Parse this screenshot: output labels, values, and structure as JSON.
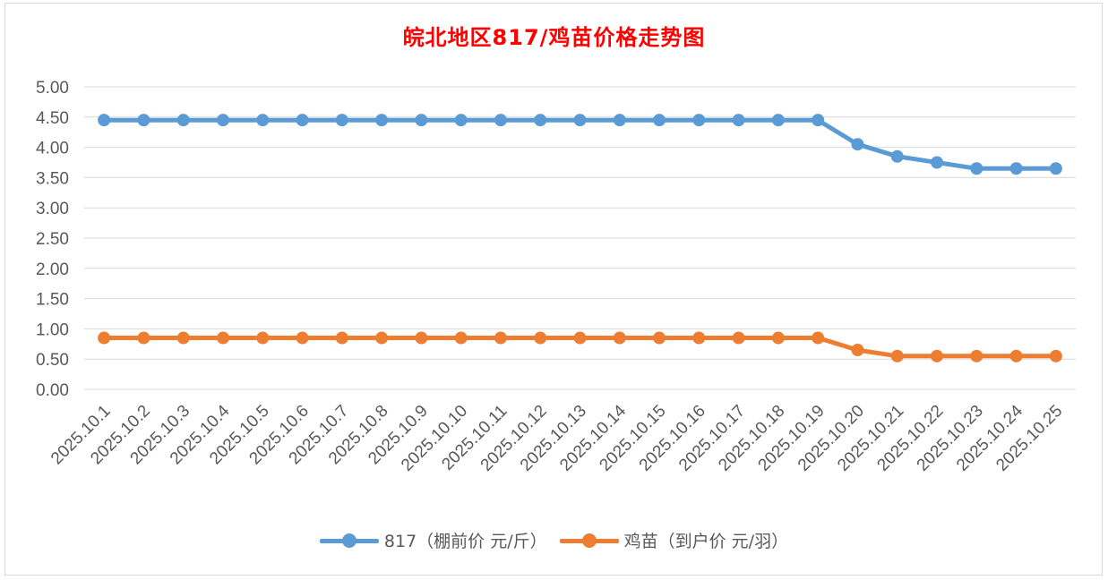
{
  "chart_data": {
    "type": "line",
    "title": "皖北地区817/鸡苗价格走势图",
    "xlabel": "",
    "ylabel": "",
    "ylim": [
      0,
      5
    ],
    "y_ticks": [
      "0.00",
      "0.50",
      "1.00",
      "1.50",
      "2.00",
      "2.50",
      "3.00",
      "3.50",
      "4.00",
      "4.50",
      "5.00"
    ],
    "grid": true,
    "legend_position": "bottom",
    "categories": [
      "2025.10.1",
      "2025.10.2",
      "2025.10.3",
      "2025.10.4",
      "2025.10.5",
      "2025.10.6",
      "2025.10.7",
      "2025.10.8",
      "2025.10.9",
      "2025.10.10",
      "2025.10.11",
      "2025.10.12",
      "2025.10.13",
      "2025.10.14",
      "2025.10.15",
      "2025.10.16",
      "2025.10.17",
      "2025.10.18",
      "2025.10.19",
      "2025.10.20",
      "2025.10.21",
      "2025.10.22",
      "2025.10.23",
      "2025.10.24",
      "2025.10.25"
    ],
    "series": [
      {
        "name": "817（棚前价 元/斤）",
        "color": "#5b9bd5",
        "values": [
          4.45,
          4.45,
          4.45,
          4.45,
          4.45,
          4.45,
          4.45,
          4.45,
          4.45,
          4.45,
          4.45,
          4.45,
          4.45,
          4.45,
          4.45,
          4.45,
          4.45,
          4.45,
          4.45,
          4.05,
          3.85,
          3.75,
          3.65,
          3.65,
          3.65
        ]
      },
      {
        "name": "鸡苗（到户价 元/羽）",
        "color": "#ed7d31",
        "values": [
          0.85,
          0.85,
          0.85,
          0.85,
          0.85,
          0.85,
          0.85,
          0.85,
          0.85,
          0.85,
          0.85,
          0.85,
          0.85,
          0.85,
          0.85,
          0.85,
          0.85,
          0.85,
          0.85,
          0.65,
          0.55,
          0.55,
          0.55,
          0.55,
          0.55
        ]
      }
    ]
  }
}
